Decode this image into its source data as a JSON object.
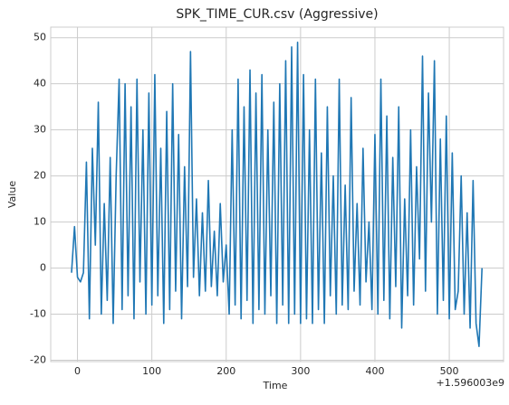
{
  "chart_data": {
    "type": "line",
    "title": "SPK_TIME_CUR.csv (Aggressive)",
    "x_label": "Time",
    "y_label": "Value",
    "x_offset_label": "+1.596003e9",
    "x": [
      -8,
      -4,
      0,
      4,
      8,
      12,
      16,
      20,
      24,
      28,
      32,
      36,
      40,
      44,
      48,
      52,
      56,
      60,
      64,
      68,
      72,
      76,
      80,
      84,
      88,
      92,
      96,
      100,
      104,
      108,
      112,
      116,
      120,
      124,
      128,
      132,
      136,
      140,
      144,
      148,
      152,
      156,
      160,
      164,
      168,
      172,
      176,
      180,
      184,
      188,
      192,
      196,
      200,
      204,
      208,
      212,
      216,
      220,
      224,
      228,
      232,
      236,
      240,
      244,
      248,
      252,
      256,
      260,
      264,
      268,
      272,
      276,
      280,
      284,
      288,
      292,
      296,
      300,
      304,
      308,
      312,
      316,
      320,
      324,
      328,
      332,
      336,
      340,
      344,
      348,
      352,
      356,
      360,
      364,
      368,
      372,
      376,
      380,
      384,
      388,
      392,
      396,
      400,
      404,
      408,
      412,
      416,
      420,
      424,
      428,
      432,
      436,
      440,
      444,
      448,
      452,
      456,
      460,
      464,
      468,
      472,
      476,
      480,
      484,
      488,
      492,
      496,
      500,
      504,
      508,
      512,
      516,
      520,
      524,
      528,
      532,
      536,
      540,
      544
    ],
    "series": [
      {
        "name": "Value",
        "color": "#1f77b4",
        "values": [
          -1,
          9,
          -2,
          -3,
          -1,
          23,
          -11,
          26,
          5,
          36,
          -10,
          14,
          -7,
          24,
          -12,
          20,
          41,
          -9,
          40,
          -6,
          35,
          -11,
          41,
          -3,
          30,
          -10,
          38,
          -8,
          42,
          -6,
          26,
          -12,
          34,
          -9,
          40,
          -5,
          29,
          -11,
          22,
          -4,
          47,
          -2,
          15,
          -6,
          12,
          -5,
          19,
          -4,
          8,
          -6,
          14,
          -3,
          5,
          -10,
          30,
          -8,
          41,
          -11,
          35,
          -7,
          43,
          -12,
          38,
          -9,
          42,
          -10,
          30,
          -6,
          36,
          -12,
          40,
          -8,
          45,
          -12,
          48,
          -10,
          49,
          -12,
          42,
          -11,
          30,
          -12,
          41,
          -9,
          25,
          -12,
          35,
          -6,
          20,
          -10,
          41,
          -8,
          18,
          -9,
          37,
          -5,
          14,
          -8,
          26,
          -3,
          10,
          -9,
          29,
          -10,
          41,
          -7,
          33,
          -11,
          24,
          -4,
          35,
          -13,
          15,
          -6,
          30,
          -8,
          22,
          2,
          46,
          -5,
          38,
          10,
          45,
          -10,
          28,
          -7,
          33,
          -11,
          25,
          -9,
          -5,
          20,
          -10,
          12,
          -13,
          19,
          -12,
          -17,
          0
        ]
      }
    ],
    "xlim": [
      -36,
      573
    ],
    "ylim": [
      -20.3,
      52.3
    ],
    "xticks": [
      0,
      100,
      200,
      300,
      400,
      500
    ],
    "yticks": [
      -20,
      -10,
      0,
      10,
      20,
      30,
      40,
      50
    ],
    "grid": true
  }
}
